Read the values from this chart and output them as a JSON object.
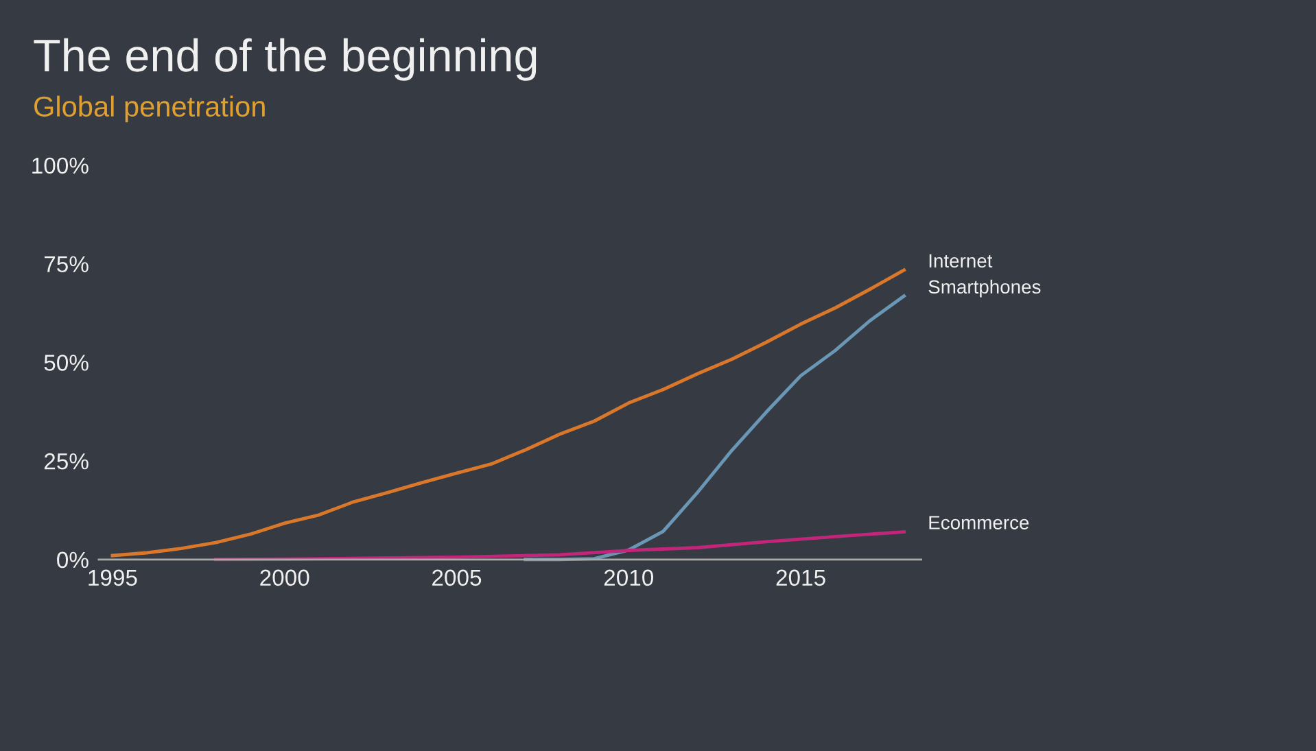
{
  "chart_data": {
    "type": "line",
    "title": "The end of the beginning",
    "subtitle": "Global penetration",
    "xlim": [
      1994.6,
      2018.5
    ],
    "xticks": [
      1995,
      2000,
      2005,
      2010,
      2015
    ],
    "ylim": [
      0,
      100
    ],
    "yticks": [
      {
        "value": 0,
        "label": "0%"
      },
      {
        "value": 25,
        "label": "25%"
      },
      {
        "value": 50,
        "label": "50%"
      },
      {
        "value": 75,
        "label": "75%"
      },
      {
        "value": 100,
        "label": "100%"
      }
    ],
    "grid": false,
    "legend": false,
    "marker": "none",
    "line_style": "solid",
    "series": [
      {
        "name": "Internet",
        "color": "#d9772a",
        "x": [
          1995,
          1996,
          1997,
          1998,
          1999,
          2000,
          2001,
          2002,
          2003,
          2004,
          2005,
          2006,
          2007,
          2008,
          2009,
          2010,
          2011,
          2012,
          2013,
          2014,
          2015,
          2016,
          2017,
          2018
        ],
        "values": [
          1.0,
          1.7,
          2.8,
          4.3,
          6.4,
          9.2,
          11.3,
          14.6,
          17.0,
          19.5,
          21.9,
          24.2,
          27.8,
          31.8,
          35.1,
          39.7,
          43.1,
          47.1,
          50.8,
          55.1,
          59.7,
          63.8,
          68.5,
          73.4
        ]
      },
      {
        "name": "Smartphones",
        "color": "#6a97b5",
        "x": [
          2007,
          2008,
          2009,
          2010,
          2011,
          2012,
          2013,
          2014,
          2015,
          2016,
          2017,
          2018
        ],
        "values": [
          0,
          0,
          0.2,
          2.4,
          7.1,
          17.0,
          27.7,
          37.4,
          46.6,
          53.0,
          60.5,
          66.8
        ]
      },
      {
        "name": "Ecommerce",
        "color": "#c2267a",
        "x": [
          1998,
          2000,
          2005,
          2008,
          2010,
          2012,
          2014,
          2016,
          2018
        ],
        "values": [
          0,
          0.1,
          0.6,
          1.2,
          2.3,
          3.0,
          4.5,
          5.8,
          7.0
        ]
      }
    ]
  }
}
